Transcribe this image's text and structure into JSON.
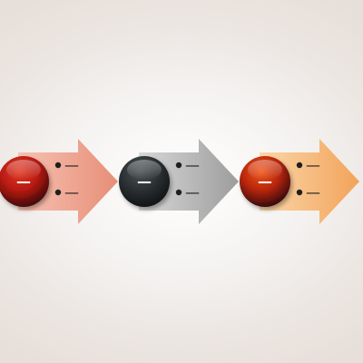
{
  "process": {
    "steps": [
      {
        "circle_label": "—",
        "bullets": [
          "—",
          "—"
        ],
        "colors": {
          "arrow_start": "#f7c2b2",
          "arrow_end": "#e78e78",
          "circle_highlight": "#e23a26",
          "circle_mid": "#b81a12",
          "circle_shadow": "#320606"
        }
      },
      {
        "circle_label": "—",
        "bullets": [
          "—",
          "—"
        ],
        "colors": {
          "arrow_start": "#d8d8d8",
          "arrow_end": "#9d9d9d",
          "circle_highlight": "#4a5256",
          "circle_mid": "#2b3033",
          "circle_shadow": "#0e1112"
        }
      },
      {
        "circle_label": "—",
        "bullets": [
          "—",
          "—"
        ],
        "colors": {
          "arrow_start": "#fbd7aa",
          "arrow_end": "#f2a35a",
          "circle_highlight": "#f0561a",
          "circle_mid": "#b8260c",
          "circle_shadow": "#270606"
        }
      }
    ]
  }
}
